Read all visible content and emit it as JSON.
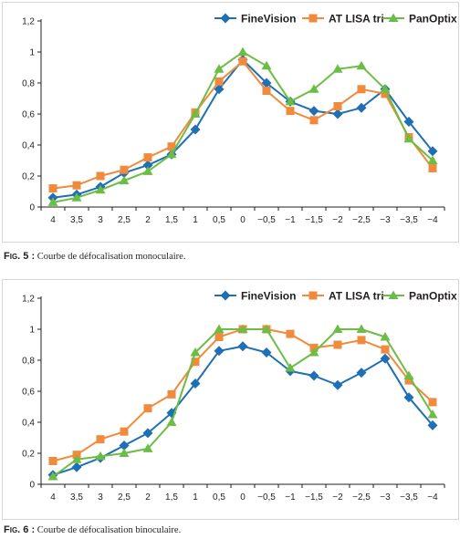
{
  "chart_data": [
    {
      "type": "line",
      "categories": [
        "4",
        "3,5",
        "3",
        "2,5",
        "2",
        "1,5",
        "1",
        "0,5",
        "0",
        "−0,5",
        "−1",
        "−1,5",
        "−2",
        "−2,5",
        "−3",
        "−3,5",
        "−4"
      ],
      "yticks": [
        "0",
        "0,2",
        "0,4",
        "0,6",
        "0,8",
        "1",
        "1,2"
      ],
      "ylim": [
        0,
        1.2
      ],
      "legend_position": "top-right",
      "grid": false,
      "series": [
        {
          "name": "FineVision",
          "color": "#1f6fb5",
          "marker": "diamond",
          "values": [
            0.06,
            0.08,
            0.13,
            0.22,
            0.27,
            0.34,
            0.5,
            0.76,
            0.95,
            0.8,
            0.68,
            0.62,
            0.6,
            0.64,
            0.76,
            0.55,
            0.36
          ]
        },
        {
          "name": "AT LISA tri",
          "color": "#f08a3c",
          "marker": "square",
          "values": [
            0.12,
            0.14,
            0.2,
            0.24,
            0.32,
            0.39,
            0.61,
            0.81,
            0.94,
            0.75,
            0.62,
            0.56,
            0.65,
            0.76,
            0.73,
            0.45,
            0.25
          ]
        },
        {
          "name": "PanOptix",
          "color": "#6cbd45",
          "marker": "triangle",
          "values": [
            0.03,
            0.06,
            0.11,
            0.17,
            0.23,
            0.34,
            0.6,
            0.89,
            1.0,
            0.91,
            0.68,
            0.76,
            0.89,
            0.91,
            0.76,
            0.44,
            0.3
          ]
        }
      ]
    },
    {
      "type": "line",
      "categories": [
        "4",
        "3,5",
        "3",
        "2,5",
        "2",
        "1,5",
        "1",
        "0,5",
        "0",
        "−0,5",
        "−1",
        "−1,5",
        "−2",
        "−2,5",
        "−3",
        "−3,5",
        "−4"
      ],
      "yticks": [
        "0",
        "0,2",
        "0,4",
        "0,6",
        "0,8",
        "1",
        "1,2"
      ],
      "ylim": [
        0,
        1.2
      ],
      "legend_position": "top-right",
      "grid": false,
      "series": [
        {
          "name": "FineVision",
          "color": "#1f6fb5",
          "marker": "diamond",
          "values": [
            0.06,
            0.11,
            0.17,
            0.25,
            0.33,
            0.46,
            0.65,
            0.86,
            0.89,
            0.85,
            0.73,
            0.7,
            0.64,
            0.72,
            0.81,
            0.56,
            0.38
          ]
        },
        {
          "name": "AT LISA tri",
          "color": "#f08a3c",
          "marker": "square",
          "values": [
            0.15,
            0.19,
            0.29,
            0.34,
            0.49,
            0.58,
            0.79,
            0.95,
            1.0,
            1.0,
            0.97,
            0.88,
            0.9,
            0.93,
            0.87,
            0.67,
            0.53
          ]
        },
        {
          "name": "PanOptix",
          "color": "#6cbd45",
          "marker": "triangle",
          "values": [
            0.05,
            0.16,
            0.18,
            0.2,
            0.23,
            0.4,
            0.85,
            1.0,
            1.0,
            1.0,
            0.75,
            0.85,
            1.0,
            1.0,
            0.95,
            0.7,
            0.45
          ]
        }
      ]
    }
  ],
  "captions": [
    {
      "number": "Fig. 5 :",
      "text": " Courbe de défocalisation monoculaire."
    },
    {
      "number": "Fig. 6 :",
      "text": " Courbe de défocalisation binoculaire."
    }
  ]
}
